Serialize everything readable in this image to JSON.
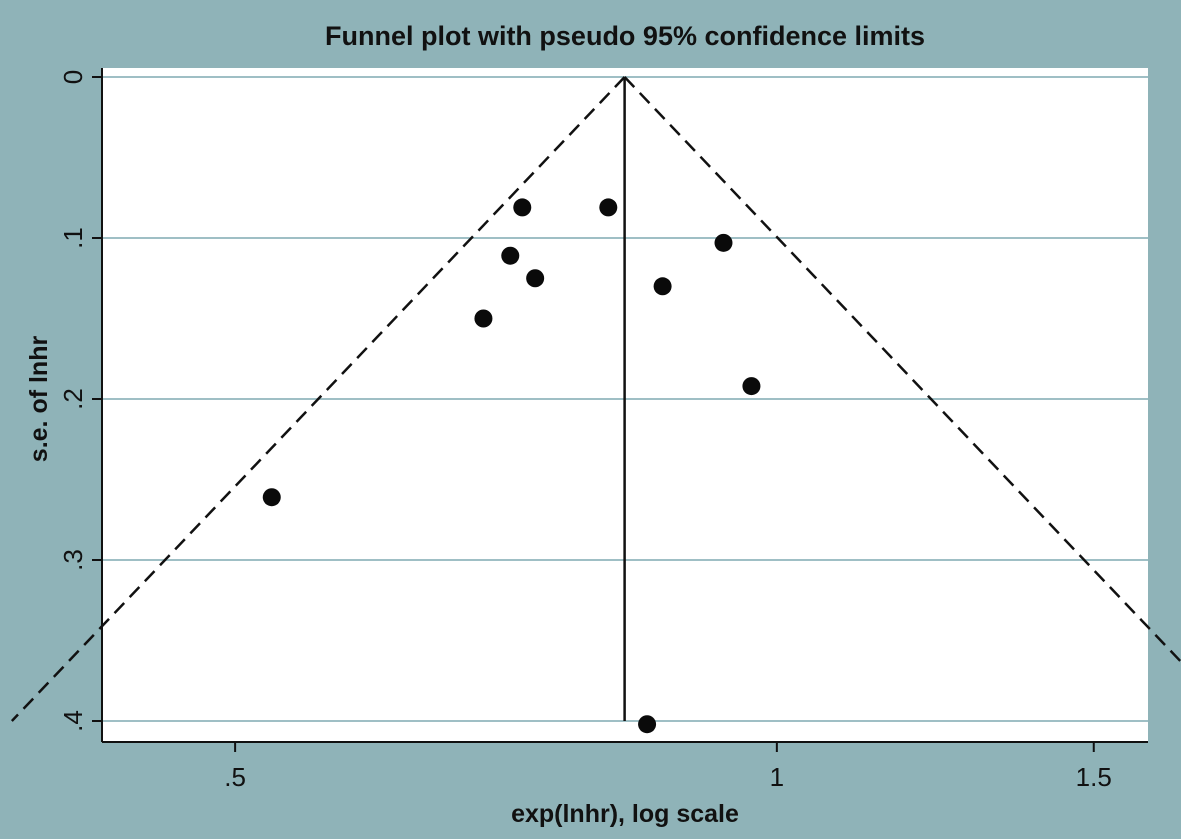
{
  "chart_data": {
    "type": "scatter",
    "title": "Funnel plot with pseudo 95% confidence limits",
    "xlabel": "exp(lnhr), log scale",
    "ylabel": "s.e. of lnhr",
    "x_scale": "log",
    "y_reversed": true,
    "xlim": [
      0.4217,
      1.6078
    ],
    "ylim": [
      0,
      0.4
    ],
    "x_ticks": [
      {
        "value": 0.5,
        "label": ".5"
      },
      {
        "value": 1,
        "label": "1"
      },
      {
        "value": 1.5,
        "label": "1.5"
      }
    ],
    "y_ticks": [
      {
        "value": 0,
        "label": "0"
      },
      {
        "value": 0.1,
        "label": ".1"
      },
      {
        "value": 0.2,
        "label": ".2"
      },
      {
        "value": 0.3,
        "label": ".3"
      },
      {
        "value": 0.4,
        "label": ".4"
      }
    ],
    "grid": "horizontal",
    "pooled_estimate": 0.823,
    "ci_level": 0.95,
    "points": [
      {
        "x": 0.722,
        "y": 0.081
      },
      {
        "x": 0.806,
        "y": 0.081
      },
      {
        "x": 0.934,
        "y": 0.103
      },
      {
        "x": 0.711,
        "y": 0.111
      },
      {
        "x": 0.734,
        "y": 0.125
      },
      {
        "x": 0.864,
        "y": 0.13
      },
      {
        "x": 0.687,
        "y": 0.15
      },
      {
        "x": 0.968,
        "y": 0.192
      },
      {
        "x": 0.524,
        "y": 0.261
      },
      {
        "x": 0.847,
        "y": 0.402
      }
    ]
  }
}
